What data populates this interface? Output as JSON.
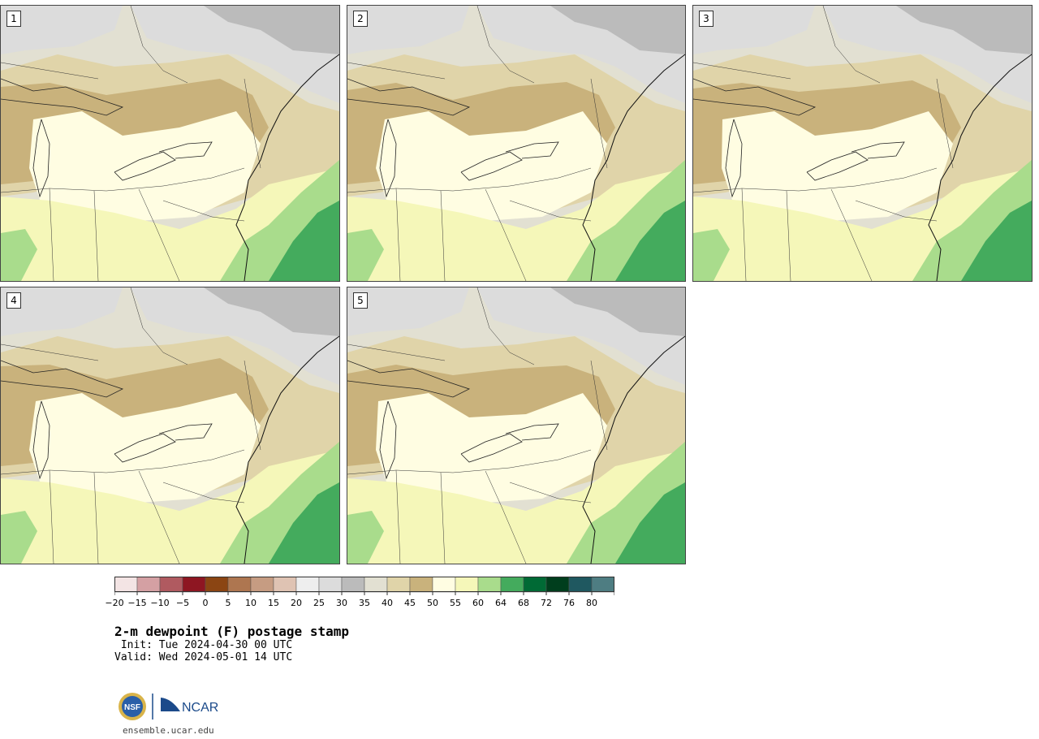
{
  "panels": [
    {
      "label": "1"
    },
    {
      "label": "2"
    },
    {
      "label": "3"
    },
    {
      "label": "4"
    },
    {
      "label": "5"
    }
  ],
  "colorbar": {
    "tick_labels": [
      "−20",
      "−15",
      "−10",
      "−5",
      "0",
      "5",
      "10",
      "15",
      "20",
      "25",
      "30",
      "35",
      "40",
      "45",
      "50",
      "55",
      "60",
      "64",
      "68",
      "72",
      "76",
      "80"
    ],
    "colors": [
      "#f3e4e4",
      "#d4a0a3",
      "#b05a60",
      "#8e1622",
      "#8b4513",
      "#ae7650",
      "#c69c82",
      "#dfc3b3",
      "#eeeeee",
      "#dcdcdc",
      "#bbbbbb",
      "#e2e0d2",
      "#e0d4a9",
      "#c9b27c",
      "#fffde2",
      "#f5f7b9",
      "#a9dc8c",
      "#44ab5d",
      "#006a35",
      "#003e1d",
      "#1f5860",
      "#4e7d82"
    ]
  },
  "title": "2-m dewpoint (F) postage stamp",
  "init": " Init: Tue 2024-04-30 00 UTC",
  "valid": "Valid: Wed 2024-05-01 14 UTC",
  "logos": {
    "nsf": "NSF",
    "ncar": "NCAR"
  },
  "site": "ensemble.ucar.edu",
  "map_colors": {
    "gray": "#bbbbbb",
    "light_gray": "#dcdcdc",
    "pale_tan": "#e2e0d2",
    "tan": "#e0d4a9",
    "brown": "#c9b27c",
    "cream": "#fffde2",
    "yellow": "#f5f7b9",
    "light_green": "#a9dc8c",
    "green": "#44ab5d"
  }
}
